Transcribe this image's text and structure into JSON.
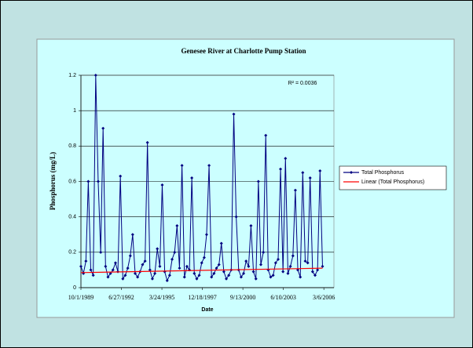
{
  "chart_data": {
    "type": "line",
    "title": "Genesee River at Charlotte Pump Station",
    "x_label": "Date",
    "y_label": "Phosphorus (mg/L)",
    "annotation": "R² = 0.0036",
    "xlim": [
      "10/1/1989",
      "11/10/2006"
    ],
    "xticks": [
      "10/1/1989",
      "6/27/1992",
      "3/24/1995",
      "12/18/1997",
      "9/13/2000",
      "6/10/2003",
      "3/6/2006"
    ],
    "ylim": [
      0,
      1.2
    ],
    "yticks": [
      0,
      0.2,
      0.4,
      0.6,
      0.8,
      1,
      1.2
    ],
    "grid": true,
    "legend": "right",
    "series": [
      {
        "name": "Total Phosphorus",
        "color": "#000080",
        "x": [
          "10/1/1989",
          "12/1/1989",
          "2/1/1990",
          "4/1/1990",
          "6/1/1990",
          "8/1/1990",
          "10/1/1990",
          "12/1/1990",
          "2/1/1991",
          "4/1/1991",
          "6/1/1991",
          "8/1/1991",
          "10/1/1991",
          "12/1/1991",
          "2/1/1992",
          "4/1/1992",
          "6/1/1992",
          "8/1/1992",
          "10/1/1992",
          "12/1/1992",
          "2/1/1993",
          "4/1/1993",
          "6/1/1993",
          "8/1/1993",
          "10/1/1993",
          "12/1/1993",
          "2/1/1994",
          "4/1/1994",
          "6/1/1994",
          "8/1/1994",
          "10/1/1994",
          "12/1/1994",
          "2/1/1995",
          "4/1/1995",
          "6/1/1995",
          "8/1/1995",
          "10/1/1995",
          "12/1/1995",
          "2/1/1996",
          "4/1/1996",
          "6/1/1996",
          "8/1/1996",
          "10/1/1996",
          "12/1/1996",
          "2/1/1997",
          "4/1/1997",
          "6/1/1997",
          "8/1/1997",
          "10/1/1997",
          "12/1/1997",
          "2/1/1998",
          "4/1/1998",
          "6/1/1998",
          "8/1/1998",
          "10/1/1998",
          "12/1/1998",
          "2/1/1999",
          "4/1/1999",
          "6/1/1999",
          "8/1/1999",
          "10/1/1999",
          "12/1/1999",
          "2/1/2000",
          "4/1/2000",
          "6/1/2000",
          "8/1/2000",
          "10/1/2000",
          "12/1/2000",
          "2/1/2001",
          "4/1/2001",
          "6/1/2001",
          "8/1/2001",
          "10/1/2001",
          "12/1/2001",
          "2/1/2002",
          "4/1/2002",
          "6/1/2002",
          "8/1/2002",
          "10/1/2002",
          "12/1/2002",
          "2/1/2003",
          "4/1/2003",
          "6/1/2003",
          "8/1/2003",
          "10/1/2003",
          "12/1/2003",
          "2/1/2004",
          "4/1/2004",
          "6/1/2004",
          "8/1/2004",
          "10/1/2004",
          "12/1/2004",
          "2/1/2005",
          "4/1/2005",
          "6/1/2005",
          "8/1/2005",
          "10/1/2005",
          "12/1/2005",
          "2/1/2006"
        ],
        "values": [
          0.12,
          0.08,
          0.15,
          0.6,
          0.1,
          0.07,
          1.2,
          0.6,
          0.2,
          0.9,
          0.12,
          0.06,
          0.08,
          0.1,
          0.14,
          0.09,
          0.63,
          0.05,
          0.07,
          0.11,
          0.18,
          0.3,
          0.08,
          0.06,
          0.09,
          0.13,
          0.15,
          0.82,
          0.1,
          0.05,
          0.08,
          0.22,
          0.12,
          0.58,
          0.09,
          0.04,
          0.07,
          0.16,
          0.2,
          0.35,
          0.11,
          0.69,
          0.06,
          0.12,
          0.1,
          0.62,
          0.08,
          0.05,
          0.07,
          0.14,
          0.17,
          0.3,
          0.69,
          0.06,
          0.08,
          0.11,
          0.13,
          0.25,
          0.09,
          0.05,
          0.07,
          0.1,
          0.98,
          0.4,
          0.1,
          0.06,
          0.08,
          0.15,
          0.12,
          0.35,
          0.09,
          0.05,
          0.6,
          0.13,
          0.2,
          0.86,
          0.1,
          0.06,
          0.07,
          0.14,
          0.16,
          0.67,
          0.09,
          0.73,
          0.08,
          0.12,
          0.18,
          0.55,
          0.1,
          0.06,
          0.65,
          0.15,
          0.14,
          0.62,
          0.09,
          0.07,
          0.1,
          0.66,
          0.12
        ]
      },
      {
        "name": "Linear (Total Phosphorus)",
        "color": "#ff0000",
        "x": [
          "10/1/1989",
          "2/1/2006"
        ],
        "values": [
          0.085,
          0.11
        ]
      }
    ]
  }
}
